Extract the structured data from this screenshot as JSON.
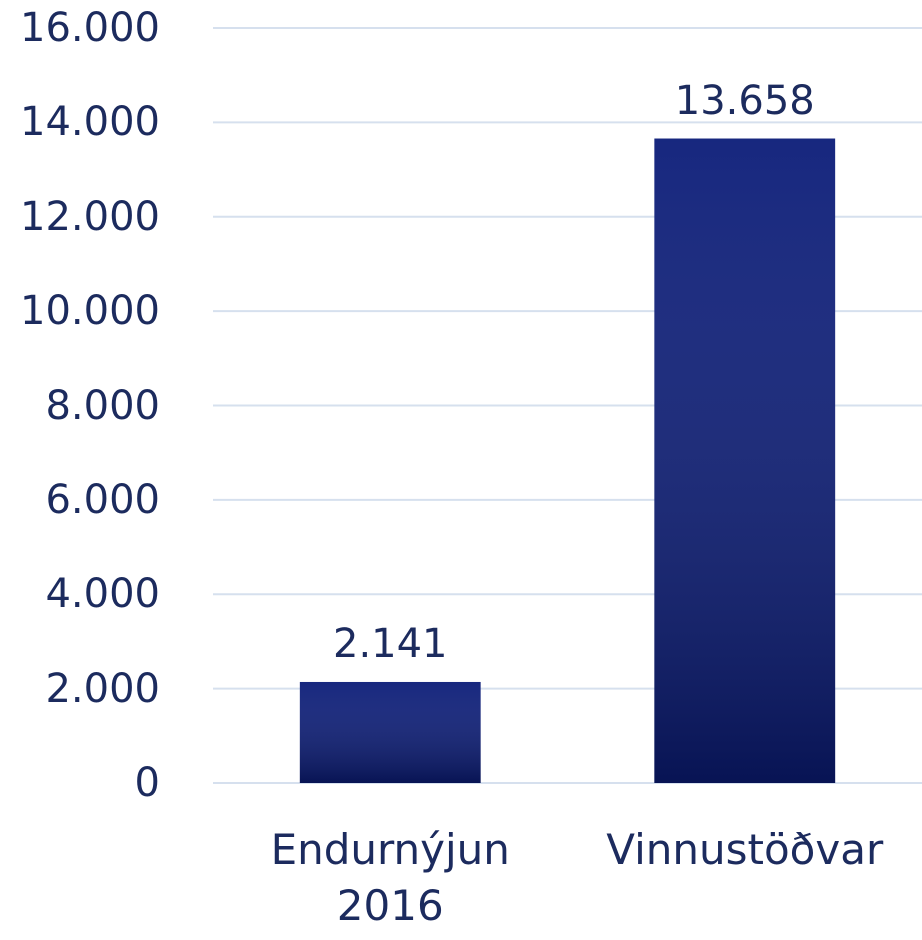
{
  "chart_data": {
    "type": "bar",
    "categories": [
      "Endurnýjun 2016",
      "Vinnustöðvar"
    ],
    "values": [
      2141,
      13658
    ],
    "value_labels": [
      "2.141",
      "13.658"
    ],
    "color": "#0b1c78",
    "ylim": [
      0,
      16000
    ],
    "yticks": [
      0,
      {
        "value": 2000,
        "label": "2.000"
      },
      {
        "value": 4000,
        "label": "4.000"
      },
      {
        "value": 6000,
        "label": "6.000"
      },
      {
        "value": 8000,
        "label": "8.000"
      },
      {
        "value": 10000,
        "label": "10.000"
      },
      {
        "value": 12000,
        "label": "12.000"
      },
      {
        "value": 14000,
        "label": "14.000"
      },
      {
        "value": 16000,
        "label": "16.000"
      }
    ],
    "grid": true
  }
}
